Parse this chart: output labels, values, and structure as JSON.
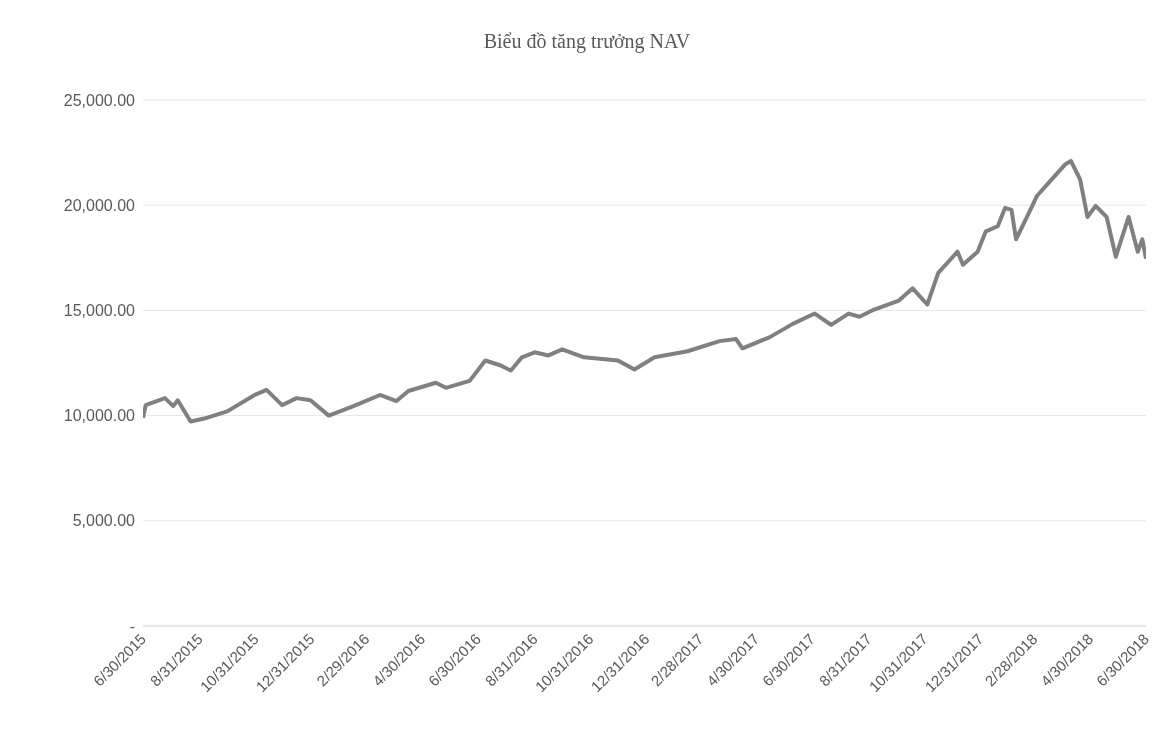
{
  "chart_data": {
    "type": "line",
    "title": "Biểu đồ tăng trưởng NAV",
    "x": [
      "2015-06-30",
      "2015-07-03",
      "2015-07-24",
      "2015-08-02",
      "2015-08-07",
      "2015-08-21",
      "2015-09-05",
      "2015-09-30",
      "2015-10-30",
      "2015-11-12",
      "2015-11-29",
      "2015-12-15",
      "2015-12-30",
      "2016-01-19",
      "2016-02-15",
      "2016-03-15",
      "2016-04-02",
      "2016-04-15",
      "2016-05-15",
      "2016-05-26",
      "2016-06-21",
      "2016-07-08",
      "2016-07-25",
      "2016-08-05",
      "2016-08-17",
      "2016-08-31",
      "2016-09-15",
      "2016-09-30",
      "2016-10-24",
      "2016-11-30",
      "2016-12-18",
      "2017-01-09",
      "2017-02-14",
      "2017-03-21",
      "2017-04-08",
      "2017-04-15",
      "2017-05-15",
      "2017-06-09",
      "2017-07-03",
      "2017-07-21",
      "2017-08-09",
      "2017-08-21",
      "2017-09-06",
      "2017-10-03",
      "2017-10-18",
      "2017-11-03",
      "2017-11-15",
      "2017-12-06",
      "2017-12-12",
      "2017-12-28",
      "2018-01-06",
      "2018-01-19",
      "2018-01-27",
      "2018-02-03",
      "2018-02-08",
      "2018-02-21",
      "2018-03-03",
      "2018-03-18",
      "2018-04-03",
      "2018-04-09",
      "2018-04-19",
      "2018-04-27",
      "2018-05-06",
      "2018-05-18",
      "2018-05-28",
      "2018-06-11",
      "2018-06-21",
      "2018-06-26",
      "2018-06-30"
    ],
    "series": [
      {
        "color": "#808080",
        "values": [
          9900,
          10500,
          10830,
          10450,
          10730,
          9720,
          9860,
          10200,
          10980,
          11220,
          10500,
          10830,
          10730,
          10000,
          10450,
          10980,
          10690,
          11170,
          11560,
          11320,
          11650,
          12620,
          12380,
          12140,
          12770,
          13010,
          12860,
          13150,
          12770,
          12620,
          12190,
          12770,
          13060,
          13540,
          13640,
          13200,
          13730,
          14360,
          14850,
          14310,
          14850,
          14700,
          15040,
          15470,
          16050,
          15280,
          16780,
          17790,
          17170,
          17790,
          18760,
          19000,
          19870,
          19780,
          18380,
          19540,
          20450,
          21180,
          21950,
          22100,
          21230,
          19440,
          19970,
          19440,
          17550,
          19440,
          17790,
          18380,
          17460
        ]
      }
    ],
    "xlim": [
      "2015-06-30",
      "2018-06-30"
    ],
    "xticks": [
      {
        "value": "2015-06-30",
        "label": "6/30/2015"
      },
      {
        "value": "2015-08-31",
        "label": "8/31/2015"
      },
      {
        "value": "2015-10-31",
        "label": "10/31/2015"
      },
      {
        "value": "2015-12-31",
        "label": "12/31/2015"
      },
      {
        "value": "2016-02-29",
        "label": "2/29/2016"
      },
      {
        "value": "2016-04-30",
        "label": "4/30/2016"
      },
      {
        "value": "2016-06-30",
        "label": "6/30/2016"
      },
      {
        "value": "2016-08-31",
        "label": "8/31/2016"
      },
      {
        "value": "2016-10-31",
        "label": "10/31/2016"
      },
      {
        "value": "2016-12-31",
        "label": "12/31/2016"
      },
      {
        "value": "2017-02-28",
        "label": "2/28/2017"
      },
      {
        "value": "2017-04-30",
        "label": "4/30/2017"
      },
      {
        "value": "2017-06-30",
        "label": "6/30/2017"
      },
      {
        "value": "2017-08-31",
        "label": "8/31/2017"
      },
      {
        "value": "2017-10-31",
        "label": "10/31/2017"
      },
      {
        "value": "2017-12-31",
        "label": "12/31/2017"
      },
      {
        "value": "2018-02-28",
        "label": "2/28/2018"
      },
      {
        "value": "2018-04-30",
        "label": "4/30/2018"
      },
      {
        "value": "2018-06-30",
        "label": "6/30/2018"
      }
    ],
    "ylim": [
      0,
      25000
    ],
    "yticks": [
      {
        "value": 0,
        "label": "-"
      },
      {
        "value": 5000,
        "label": "5,000.00"
      },
      {
        "value": 10000,
        "label": "10,000.00"
      },
      {
        "value": 15000,
        "label": "15,000.00"
      },
      {
        "value": 20000,
        "label": "20,000.00"
      },
      {
        "value": 25000,
        "label": "25,000.00"
      }
    ],
    "grid": "y",
    "marker": "none",
    "line_style": "solid",
    "legend": false
  }
}
